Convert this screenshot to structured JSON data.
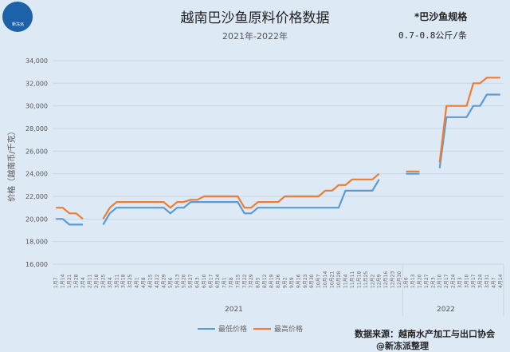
{
  "header": {
    "title": "越南巴沙鱼原料价格数据",
    "subtitle": "2021年-2022年",
    "spec_line1": "*巴沙鱼规格",
    "spec_line2": "0.7-0.8公斤/条",
    "logo_text": "新冻派"
  },
  "footer": {
    "source": "数据来源：越南水产加工与出口协会",
    "credit": "@新冻派整理"
  },
  "colors": {
    "low": "#5b9bd5",
    "high": "#ed7d31",
    "grid": "#c8d7e6"
  },
  "chart_data": {
    "type": "line",
    "title": "越南巴沙鱼原料价格数据",
    "subtitle": "2021年-2022年",
    "xlabel": "",
    "ylabel": "价格（越南币/千克）",
    "ylim": [
      16000,
      34000
    ],
    "yticks": [
      "16,000",
      "18,000",
      "20,000",
      "22,000",
      "24,000",
      "26,000",
      "28,000",
      "30,000",
      "32,000",
      "34,000"
    ],
    "grid": true,
    "legend_position": "bottom",
    "year_groups": [
      {
        "label": "2021",
        "count": 52
      },
      {
        "label": "2022",
        "count": 15
      }
    ],
    "categories": [
      "1月7",
      "1月14",
      "1月21",
      "1月28",
      "2月4",
      "2月11",
      "2月18",
      "2月25",
      "3月4",
      "3月11",
      "3月18",
      "3月25",
      "4月1",
      "4月8",
      "4月15",
      "4月22",
      "4月29",
      "5月6",
      "5月13",
      "5月20",
      "5月27",
      "6月3",
      "6月10",
      "6月17",
      "6月24",
      "7月1",
      "7月8",
      "7月15",
      "7月22",
      "7月29",
      "8月5",
      "8月12",
      "8月19",
      "8月26",
      "9月2",
      "9月9",
      "9月16",
      "9月23",
      "9月30",
      "10月7",
      "10月14",
      "10月21",
      "10月28",
      "11月4",
      "11月11",
      "11月18",
      "11月25",
      "12月2",
      "12月9",
      "12月16",
      "12月23",
      "12月30",
      "1月6",
      "1月13",
      "1月20",
      "1月27",
      "2月3",
      "2月10",
      "2月17",
      "2月24",
      "3月3",
      "3月10",
      "3月17",
      "3月24",
      "3月31",
      "4月7",
      "4月14"
    ],
    "series": [
      {
        "name": "最低价格",
        "values": [
          20000,
          20000,
          19500,
          19500,
          19500,
          null,
          null,
          19500,
          20500,
          21000,
          21000,
          21000,
          21000,
          21000,
          21000,
          21000,
          21000,
          20500,
          21000,
          21000,
          21500,
          21500,
          21500,
          21500,
          21500,
          21500,
          21500,
          21500,
          20500,
          20500,
          21000,
          21000,
          21000,
          21000,
          21000,
          21000,
          21000,
          21000,
          21000,
          21000,
          21000,
          21000,
          21000,
          22500,
          22500,
          22500,
          22500,
          22500,
          23500,
          null,
          null,
          null,
          24000,
          24000,
          24000,
          null,
          null,
          24500,
          29000,
          29000,
          29000,
          29000,
          30000,
          30000,
          31000,
          31000,
          31000
        ]
      },
      {
        "name": "最高价格",
        "values": [
          21000,
          21000,
          20500,
          20500,
          20000,
          null,
          null,
          20000,
          21000,
          21500,
          21500,
          21500,
          21500,
          21500,
          21500,
          21500,
          21500,
          21000,
          21500,
          21500,
          21700,
          21700,
          22000,
          22000,
          22000,
          22000,
          22000,
          22000,
          21000,
          21000,
          21500,
          21500,
          21500,
          21500,
          22000,
          22000,
          22000,
          22000,
          22000,
          22000,
          22500,
          22500,
          23000,
          23000,
          23500,
          23500,
          23500,
          23500,
          24000,
          null,
          null,
          null,
          24200,
          24200,
          24200,
          null,
          null,
          25000,
          30000,
          30000,
          30000,
          30000,
          32000,
          32000,
          32500,
          32500,
          32500
        ]
      }
    ]
  }
}
